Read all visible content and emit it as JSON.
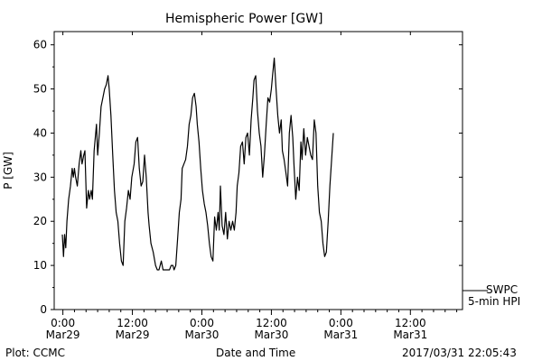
{
  "chart_data": {
    "type": "line",
    "title": "Hemispheric Power [GW]",
    "xlabel": "Date and Time",
    "ylabel": "P [GW]",
    "ylim": [
      0,
      63
    ],
    "y_ticks": [
      0,
      10,
      20,
      30,
      40,
      50,
      60
    ],
    "x_unit": "hours since 2017-03-29 00:00 UT",
    "xlim": [
      -1.5,
      69
    ],
    "x_ticks": [
      {
        "hours": 0,
        "time": "0:00",
        "date": "Mar29"
      },
      {
        "hours": 12,
        "time": "12:00",
        "date": "Mar29"
      },
      {
        "hours": 24,
        "time": "0:00",
        "date": "Mar30"
      },
      {
        "hours": 36,
        "time": "12:00",
        "date": "Mar30"
      },
      {
        "hours": 48,
        "time": "0:00",
        "date": "Mar31"
      },
      {
        "hours": 60,
        "time": "12:00",
        "date": "Mar31"
      }
    ],
    "grid": false,
    "legend": {
      "position": "right-bottom",
      "items": [
        "SWPC",
        "5-min HPI"
      ]
    },
    "series": [
      {
        "name": "5-min HPI",
        "points": [
          [
            -0.1,
            17
          ],
          [
            0.1,
            12
          ],
          [
            0.3,
            17
          ],
          [
            0.5,
            14
          ],
          [
            0.7,
            20
          ],
          [
            1,
            25
          ],
          [
            1.3,
            28
          ],
          [
            1.6,
            32
          ],
          [
            1.8,
            30
          ],
          [
            2,
            32
          ],
          [
            2.2,
            30
          ],
          [
            2.5,
            28
          ],
          [
            2.8,
            33
          ],
          [
            3.1,
            36
          ],
          [
            3.3,
            33
          ],
          [
            3.6,
            35
          ],
          [
            3.8,
            36
          ],
          [
            4.1,
            23
          ],
          [
            4.4,
            27
          ],
          [
            4.6,
            25
          ],
          [
            4.9,
            27
          ],
          [
            5.1,
            25
          ],
          [
            5.4,
            36
          ],
          [
            5.8,
            42
          ],
          [
            6,
            35
          ],
          [
            6.3,
            40
          ],
          [
            6.6,
            46
          ],
          [
            6.9,
            48
          ],
          [
            7.2,
            50
          ],
          [
            7.5,
            51
          ],
          [
            7.8,
            53
          ],
          [
            8,
            50
          ],
          [
            8.3,
            44
          ],
          [
            8.6,
            35
          ],
          [
            8.9,
            27
          ],
          [
            9.2,
            22
          ],
          [
            9.5,
            20
          ],
          [
            9.8,
            15
          ],
          [
            10.1,
            11
          ],
          [
            10.4,
            10
          ],
          [
            10.7,
            20
          ],
          [
            11,
            23
          ],
          [
            11.3,
            27
          ],
          [
            11.6,
            25
          ],
          [
            11.9,
            30
          ],
          [
            12.3,
            33
          ],
          [
            12.6,
            38
          ],
          [
            12.9,
            39
          ],
          [
            13.2,
            32
          ],
          [
            13.5,
            28
          ],
          [
            13.8,
            29
          ],
          [
            14.1,
            35
          ],
          [
            14.4,
            30
          ],
          [
            14.7,
            22
          ],
          [
            14.9,
            19
          ],
          [
            15.2,
            15
          ],
          [
            15.6,
            13
          ],
          [
            16,
            10
          ],
          [
            16.3,
            9
          ],
          [
            16.6,
            9
          ],
          [
            17,
            11
          ],
          [
            17.3,
            9
          ],
          [
            17.6,
            9
          ],
          [
            18,
            9
          ],
          [
            18.4,
            9
          ],
          [
            18.7,
            10
          ],
          [
            19,
            10
          ],
          [
            19.2,
            9
          ],
          [
            19.5,
            10
          ],
          [
            19.8,
            16
          ],
          [
            20.1,
            22
          ],
          [
            20.4,
            25
          ],
          [
            20.6,
            32
          ],
          [
            20.9,
            33
          ],
          [
            21.2,
            34
          ],
          [
            21.5,
            37
          ],
          [
            21.8,
            42
          ],
          [
            22.1,
            44
          ],
          [
            22.4,
            48
          ],
          [
            22.7,
            49
          ],
          [
            23,
            46
          ],
          [
            23.2,
            42
          ],
          [
            23.5,
            38
          ],
          [
            23.8,
            32
          ],
          [
            24.1,
            27
          ],
          [
            24.4,
            24
          ],
          [
            24.7,
            22
          ],
          [
            25,
            19
          ],
          [
            25.3,
            15
          ],
          [
            25.6,
            12
          ],
          [
            25.9,
            11
          ],
          [
            26.2,
            21
          ],
          [
            26.5,
            18
          ],
          [
            26.8,
            22
          ],
          [
            27,
            18
          ],
          [
            27.2,
            28
          ],
          [
            27.5,
            19
          ],
          [
            27.8,
            17
          ],
          [
            28.1,
            22
          ],
          [
            28.4,
            16
          ],
          [
            28.7,
            20
          ],
          [
            29,
            18
          ],
          [
            29.3,
            20
          ],
          [
            29.6,
            18
          ],
          [
            29.9,
            22
          ],
          [
            30.1,
            28
          ],
          [
            30.4,
            31
          ],
          [
            30.7,
            37
          ],
          [
            31,
            38
          ],
          [
            31.3,
            33
          ],
          [
            31.6,
            39
          ],
          [
            31.9,
            40
          ],
          [
            32.2,
            35
          ],
          [
            32.5,
            43
          ],
          [
            32.8,
            48
          ],
          [
            33,
            52
          ],
          [
            33.3,
            53
          ],
          [
            33.6,
            45
          ],
          [
            33.9,
            40
          ],
          [
            34.2,
            37
          ],
          [
            34.5,
            30
          ],
          [
            34.8,
            35
          ],
          [
            35.1,
            42
          ],
          [
            35.4,
            48
          ],
          [
            35.7,
            47
          ],
          [
            36,
            50
          ],
          [
            36.2,
            53
          ],
          [
            36.5,
            57
          ],
          [
            36.8,
            50
          ],
          [
            37.1,
            44
          ],
          [
            37.4,
            40
          ],
          [
            37.7,
            43
          ],
          [
            37.9,
            36
          ],
          [
            38.2,
            34
          ],
          [
            38.5,
            31
          ],
          [
            38.8,
            28
          ],
          [
            39.1,
            40
          ],
          [
            39.4,
            44
          ],
          [
            39.7,
            39
          ],
          [
            39.9,
            33
          ],
          [
            40.2,
            25
          ],
          [
            40.5,
            30
          ],
          [
            40.8,
            27
          ],
          [
            41.1,
            38
          ],
          [
            41.3,
            34
          ],
          [
            41.6,
            41
          ],
          [
            41.9,
            35
          ],
          [
            42.2,
            39
          ],
          [
            42.5,
            37
          ],
          [
            42.8,
            35
          ],
          [
            43.1,
            34
          ],
          [
            43.4,
            43
          ],
          [
            43.7,
            40
          ],
          [
            44,
            28
          ],
          [
            44.3,
            22
          ],
          [
            44.6,
            20
          ],
          [
            44.9,
            15
          ],
          [
            45.2,
            12
          ],
          [
            45.5,
            13
          ],
          [
            45.8,
            20
          ],
          [
            46.1,
            28
          ],
          [
            46.4,
            34
          ],
          [
            46.7,
            40
          ]
        ]
      }
    ]
  },
  "footer": {
    "left": "Plot: CCMC",
    "center": "Date and Time",
    "right": "2017/03/31  22:05:43"
  }
}
